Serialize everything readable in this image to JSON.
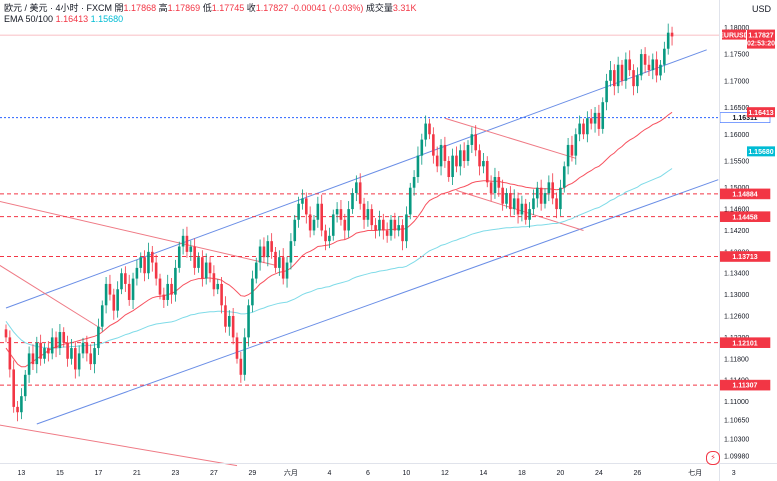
{
  "header": {
    "symbol": "欧元 / 美元 · 4小时 · FXCM",
    "open_label": "開",
    "open": "1.17868",
    "high_label": "高",
    "high": "1.17869",
    "low_label": "低",
    "low": "1.17745",
    "close_label": "收",
    "close": "1.17827",
    "change": "-0.00041 (-0.03%)",
    "volume_label": "成交量",
    "volume": "3.31K",
    "ema_label": "EMA 50/100",
    "ema_fast": "1.16413",
    "ema_slow": "1.15680",
    "currency": "USD"
  },
  "colors": {
    "up": "#089981",
    "down": "#f23645",
    "ema_fast": "#f7525f",
    "ema_slow": "#7fdbe8",
    "channel": "#6a8ee6",
    "downtrend": "#ef7a85",
    "tag_red": "#f23645",
    "tag_cyan": "#00bcd4"
  },
  "chart_data": {
    "type": "candlestick",
    "ylim": [
      1.0985,
      1.181
    ],
    "y_ticks": [
      "1.18000",
      "1.17500",
      "1.17000",
      "1.16500",
      "1.16000",
      "1.15500",
      "1.15000",
      "1.14600",
      "1.14200",
      "1.13800",
      "1.13400",
      "1.13000",
      "1.12600",
      "1.12200",
      "1.11800",
      "1.11400",
      "1.11000",
      "1.10650",
      "1.10300",
      "1.09980"
    ],
    "x_ticks": [
      {
        "label": "13",
        "bar": 4
      },
      {
        "label": "15",
        "bar": 14
      },
      {
        "label": "17",
        "bar": 24
      },
      {
        "label": "21",
        "bar": 34
      },
      {
        "label": "23",
        "bar": 44
      },
      {
        "label": "27",
        "bar": 54
      },
      {
        "label": "29",
        "bar": 64
      },
      {
        "label": "六月",
        "bar": 74
      },
      {
        "label": "4",
        "bar": 84
      },
      {
        "label": "6",
        "bar": 94
      },
      {
        "label": "10",
        "bar": 104
      },
      {
        "label": "12",
        "bar": 114
      },
      {
        "label": "14",
        "bar": 124
      },
      {
        "label": "18",
        "bar": 134
      },
      {
        "label": "20",
        "bar": 144
      },
      {
        "label": "24",
        "bar": 154
      },
      {
        "label": "26",
        "bar": 164
      },
      {
        "label": "七月",
        "bar": 179
      },
      {
        "label": "3",
        "bar": 189
      }
    ],
    "closes": [
      1.122,
      1.116,
      1.109,
      1.108,
      1.111,
      1.115,
      1.119,
      1.117,
      1.121,
      1.118,
      1.12,
      1.119,
      1.122,
      1.12,
      1.123,
      1.121,
      1.118,
      1.12,
      1.116,
      1.119,
      1.121,
      1.119,
      1.117,
      1.12,
      1.124,
      1.128,
      1.132,
      1.13,
      1.127,
      1.131,
      1.134,
      1.132,
      1.129,
      1.133,
      1.135,
      1.137,
      1.134,
      1.138,
      1.136,
      1.133,
      1.13,
      1.129,
      1.132,
      1.13,
      1.135,
      1.139,
      1.141,
      1.138,
      1.139,
      1.135,
      1.137,
      1.133,
      1.136,
      1.134,
      1.131,
      1.132,
      1.128,
      1.124,
      1.126,
      1.122,
      1.118,
      1.115,
      1.122,
      1.128,
      1.133,
      1.136,
      1.139,
      1.137,
      1.14,
      1.138,
      1.135,
      1.137,
      1.133,
      1.136,
      1.14,
      1.144,
      1.147,
      1.148,
      1.145,
      1.142,
      1.144,
      1.147,
      1.142,
      1.14,
      1.141,
      1.145,
      1.146,
      1.144,
      1.142,
      1.146,
      1.149,
      1.151,
      1.147,
      1.144,
      1.146,
      1.143,
      1.142,
      1.144,
      1.142,
      1.141,
      1.144,
      1.142,
      1.143,
      1.14,
      1.145,
      1.15,
      1.152,
      1.156,
      1.159,
      1.162,
      1.16,
      1.156,
      1.154,
      1.158,
      1.155,
      1.152,
      1.156,
      1.154,
      1.157,
      1.155,
      1.158,
      1.16,
      1.157,
      1.154,
      1.155,
      1.151,
      1.149,
      1.152,
      1.15,
      1.147,
      1.149,
      1.146,
      1.148,
      1.145,
      1.147,
      1.144,
      1.146,
      1.148,
      1.15,
      1.147,
      1.149,
      1.151,
      1.148,
      1.146,
      1.15,
      1.154,
      1.158,
      1.156,
      1.16,
      1.162,
      1.16,
      1.163,
      1.162,
      1.164,
      1.161,
      1.166,
      1.17,
      1.172,
      1.169,
      1.173,
      1.17,
      1.174,
      1.172,
      1.169,
      1.171,
      1.175,
      1.173,
      1.172,
      1.174,
      1.171,
      1.173,
      1.176,
      1.179,
      1.1783
    ],
    "ema_fast_values": [
      1.12,
      1.119,
      1.118,
      1.117,
      1.1165,
      1.1165,
      1.117,
      1.1175,
      1.118,
      1.1185,
      1.119,
      1.1195,
      1.12,
      1.1202,
      1.1205,
      1.1207,
      1.1209,
      1.121,
      1.1212,
      1.1214,
      1.1216,
      1.1218,
      1.122,
      1.1222,
      1.1225,
      1.123,
      1.1236,
      1.1242,
      1.1246,
      1.125,
      1.1256,
      1.1262,
      1.1266,
      1.127,
      1.1275,
      1.128,
      1.1285,
      1.129,
      1.1294,
      1.1296,
      1.1297,
      1.1298,
      1.13,
      1.1302,
      1.1306,
      1.1312,
      1.1318,
      1.1322,
      1.1326,
      1.1328,
      1.133,
      1.133,
      1.1331,
      1.1331,
      1.133,
      1.1329,
      1.1327,
      1.1322,
      1.1318,
      1.1312,
      1.1305,
      1.1298,
      1.1297,
      1.13,
      1.1305,
      1.1312,
      1.132,
      1.1325,
      1.1331,
      1.1336,
      1.1339,
      1.1342,
      1.1343,
      1.1345,
      1.135,
      1.1357,
      1.1365,
      1.1373,
      1.1378,
      1.1381,
      1.1385,
      1.139,
      1.1391,
      1.1392,
      1.1393,
      1.1396,
      1.14,
      1.1402,
      1.1403,
      1.1406,
      1.141,
      1.1415,
      1.1417,
      1.1418,
      1.142,
      1.142,
      1.142,
      1.1421,
      1.1421,
      1.1421,
      1.1422,
      1.1422,
      1.1423,
      1.1422,
      1.1424,
      1.143,
      1.1437,
      1.1446,
      1.1456,
      1.1468,
      1.1476,
      1.148,
      1.1483,
      1.1488,
      1.149,
      1.1492,
      1.1495,
      1.1497,
      1.15,
      1.1502,
      1.1505,
      1.1509,
      1.1511,
      1.1512,
      1.1513,
      1.1513,
      1.1512,
      1.1512,
      1.1512,
      1.151,
      1.1509,
      1.1507,
      1.1506,
      1.1504,
      1.1503,
      1.1501,
      1.15,
      1.1499,
      1.1499,
      1.1498,
      1.1498,
      1.1498,
      1.1497,
      1.1496,
      1.1497,
      1.15,
      1.1505,
      1.1508,
      1.1513,
      1.1519,
      1.1523,
      1.1528,
      1.1532,
      1.1537,
      1.154,
      1.1546,
      1.1553,
      1.156,
      1.1565,
      1.1572,
      1.1577,
      1.1584,
      1.1589,
      1.1593,
      1.1598,
      1.1604,
      1.1609,
      1.1613,
      1.1618,
      1.1621,
      1.1625,
      1.163,
      1.1636,
      1.1641
    ],
    "ema_slow_values": [
      1.125,
      1.124,
      1.123,
      1.1222,
      1.1215,
      1.121,
      1.1207,
      1.1205,
      1.1203,
      1.1202,
      1.1201,
      1.12,
      1.12,
      1.12,
      1.1201,
      1.1202,
      1.1202,
      1.1203,
      1.1203,
      1.1204,
      1.1204,
      1.1205,
      1.1205,
      1.1206,
      1.1207,
      1.1209,
      1.1212,
      1.1215,
      1.1217,
      1.1219,
      1.1222,
      1.1225,
      1.1227,
      1.123,
      1.1232,
      1.1235,
      1.1238,
      1.1241,
      1.1243,
      1.1245,
      1.1246,
      1.1247,
      1.1248,
      1.1249,
      1.1251,
      1.1254,
      1.1257,
      1.1259,
      1.1262,
      1.1263,
      1.1265,
      1.1266,
      1.1267,
      1.1268,
      1.1268,
      1.1269,
      1.1269,
      1.1268,
      1.1268,
      1.1267,
      1.1266,
      1.1264,
      1.1264,
      1.1265,
      1.1267,
      1.127,
      1.1273,
      1.1275,
      1.1278,
      1.128,
      1.1282,
      1.1284,
      1.1285,
      1.1286,
      1.1289,
      1.1292,
      1.1296,
      1.13,
      1.1303,
      1.1305,
      1.1308,
      1.1311,
      1.1312,
      1.1314,
      1.1315,
      1.1318,
      1.132,
      1.1322,
      1.1324,
      1.1326,
      1.133,
      1.1333,
      1.1335,
      1.1337,
      1.1339,
      1.1341,
      1.1342,
      1.1344,
      1.1345,
      1.1346,
      1.1348,
      1.1349,
      1.1351,
      1.1351,
      1.1353,
      1.1357,
      1.1361,
      1.1366,
      1.1371,
      1.1377,
      1.1382,
      1.1385,
      1.1388,
      1.1392,
      1.1394,
      1.1397,
      1.14,
      1.1402,
      1.1405,
      1.1407,
      1.141,
      1.1413,
      1.1415,
      1.1417,
      1.1419,
      1.142,
      1.1421,
      1.1422,
      1.1423,
      1.1424,
      1.1425,
      1.1425,
      1.1426,
      1.1426,
      1.1427,
      1.1427,
      1.1428,
      1.1429,
      1.143,
      1.143,
      1.1431,
      1.1432,
      1.1433,
      1.1433,
      1.1435,
      1.1437,
      1.144,
      1.1442,
      1.1446,
      1.1449,
      1.1452,
      1.1455,
      1.1458,
      1.1461,
      1.1463,
      1.1467,
      1.1471,
      1.1476,
      1.1479,
      1.1484,
      1.1487,
      1.1492,
      1.1495,
      1.1498,
      1.1501,
      1.1506,
      1.1509,
      1.1512,
      1.1515,
      1.1518,
      1.1521,
      1.1526,
      1.1531,
      1.1536
    ],
    "horizontal_levels": [
      {
        "price": 1.16311,
        "label": "1.16311",
        "color": "#2962ff",
        "style": "dotted"
      },
      {
        "price": 1.14884,
        "label": "1.14884",
        "color": "#f23645",
        "style": "dashed"
      },
      {
        "price": 1.14458,
        "label": "1.14458",
        "color": "#f23645",
        "style": "dashed"
      },
      {
        "price": 1.13713,
        "label": "1.13713",
        "color": "#f23645",
        "style": "dashed"
      },
      {
        "price": 1.12101,
        "label": "1.12101",
        "color": "#f23645",
        "style": "dashed"
      },
      {
        "price": 1.11307,
        "label": "1.11307",
        "color": "#f23645",
        "style": "dashed"
      }
    ],
    "price_tags": [
      {
        "label": "EURUSD",
        "price": 1.17827,
        "color": "#f23645",
        "value": "1.17827",
        "countdown": "02:53:20"
      },
      {
        "label": "",
        "price": 1.16413,
        "color": "#f23645",
        "value": "1.16413"
      },
      {
        "label": "",
        "price": 1.1568,
        "color": "#00bcd4",
        "value": "1.15680"
      }
    ],
    "trendlines": [
      {
        "name": "channel-upper",
        "color": "#6a8ee6",
        "from": [
          0,
          1.1275
        ],
        "to": [
          182,
          1.1758
        ]
      },
      {
        "name": "channel-lower",
        "color": "#6a8ee6",
        "from": [
          8,
          1.1058
        ],
        "to": [
          185,
          1.1515
        ]
      },
      {
        "name": "long-downtrend",
        "color": "#ef7a85",
        "from": [
          -5,
          1.148
        ],
        "to": [
          70,
          1.1355
        ]
      },
      {
        "name": "left-fan-1",
        "color": "#ef7a85",
        "from": [
          -5,
          1.137
        ],
        "to": [
          25,
          1.1235
        ]
      },
      {
        "name": "left-fan-2",
        "color": "#ef7a85",
        "from": [
          -5,
          1.106
        ],
        "to": [
          60,
          1.098
        ]
      },
      {
        "name": "flag-upper",
        "color": "#ef7a85",
        "from": [
          114,
          1.163
        ],
        "to": [
          148,
          1.1555
        ]
      },
      {
        "name": "flag-lower",
        "color": "#ef7a85",
        "from": [
          117,
          1.1495
        ],
        "to": [
          150,
          1.142
        ]
      }
    ]
  }
}
